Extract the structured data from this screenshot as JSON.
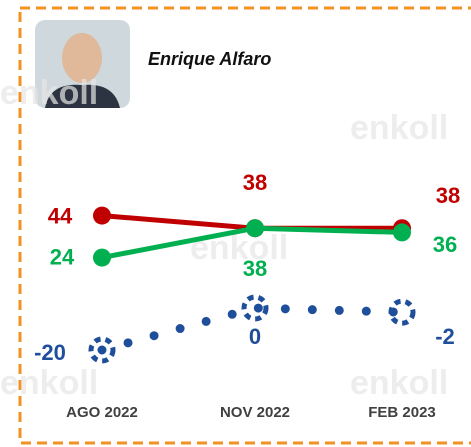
{
  "chart_data": {
    "type": "line",
    "title": "Enrique Alfaro",
    "watermark": "enkoll",
    "categories": [
      "AGO 2022",
      "NOV 2022",
      "FEB 2023"
    ],
    "series": [
      {
        "color": "#c00000",
        "values": [
          44,
          38,
          38
        ]
      },
      {
        "color": "#00b050",
        "values": [
          24,
          38,
          36
        ]
      },
      {
        "color": "#1f4e9b",
        "values": [
          -20,
          0,
          -2
        ],
        "style": "dotted"
      }
    ]
  }
}
